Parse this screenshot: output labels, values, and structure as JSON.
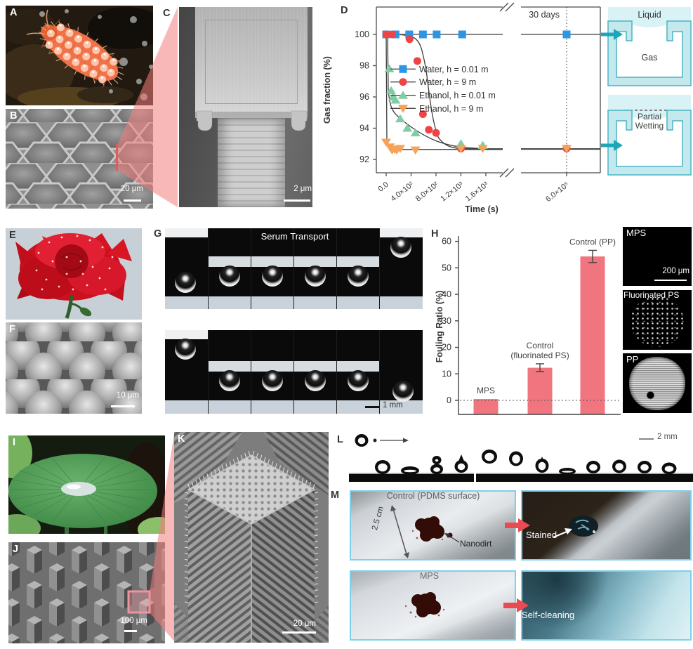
{
  "figure_labels": {
    "a": "A",
    "b": "B",
    "c": "C",
    "d": "D",
    "e": "E",
    "f": "F",
    "g": "G",
    "h": "H",
    "i": "I",
    "j": "J",
    "k": "K",
    "l": "L",
    "m": "M"
  },
  "scale_bars": {
    "b": "20 μm",
    "c": "2 μm",
    "f": "10 μm",
    "g": "1 mm",
    "h_inset": "200 μm",
    "j": "100 μm",
    "k": "20 μm",
    "l": "2 mm"
  },
  "panel_g": {
    "title": "Serum Transport"
  },
  "schematic": {
    "top_label": "Liquid",
    "top_inner_label": "Gas",
    "bottom_label": "Partial Wetting"
  },
  "h_insets": {
    "top": "MPS",
    "middle": "Fluorinated PS",
    "bottom": "PP"
  },
  "panel_m": {
    "control_label": "Control (PDMS surface)",
    "dimension": "2.5 cm",
    "nanodirt_label": "Nanodirt",
    "stained_label": "Stained",
    "mps_label": "MPS",
    "self_cleaning_label": "Self-cleaning"
  },
  "colors": {
    "water_blue": "#2D96E4",
    "water_red": "#EE4446",
    "ethanol_green": "#7FCEA3",
    "ethanol_orange": "#F6A259",
    "bar_salmon": "#F0757E",
    "teal_arrow": "#1BA7B9",
    "wedge_pink": "rgba(244,125,125,0.55)",
    "cyan_border": "#7CD0EC",
    "schematic_fill": "#C3E9EF",
    "schematic_stroke": "#4AB4C2"
  },
  "chart_data": [
    {
      "type": "line",
      "title": "",
      "xlabel": "Time (s)",
      "ylabel": "Gas fraction (%)",
      "annotation": "30 days",
      "axis_break": true,
      "axis_break_between": [
        "1.6×10³",
        "6.0×10⁵"
      ],
      "ylim": [
        91.3,
        101.6
      ],
      "yticks": [
        100,
        98,
        96,
        94,
        92
      ],
      "xticks": [
        {
          "label": "0.0",
          "t": 0
        },
        {
          "label": "4.0×10²",
          "t": 400
        },
        {
          "label": "8.0×10²",
          "t": 800
        },
        {
          "label": "1.2×10³",
          "t": 1200
        },
        {
          "label": "1.6×10³",
          "t": 1600
        },
        {
          "label": "6.0×10⁵",
          "t": 600000
        }
      ],
      "legend_position": "center",
      "series": [
        {
          "name": "Water, h = 0.01 m",
          "color": "#2D96E4",
          "marker": "square",
          "points": [
            [
              0,
              100
            ],
            [
              150,
              100
            ],
            [
              370,
              100
            ],
            [
              590,
              100
            ],
            [
              810,
              100
            ],
            [
              1220,
              100
            ],
            [
              600000,
              100
            ]
          ]
        },
        {
          "name": "Water, h = 9 m",
          "color": "#EE4446",
          "marker": "circle",
          "points": [
            [
              0,
              100
            ],
            [
              95,
              100
            ],
            [
              375,
              99.7
            ],
            [
              500,
              98.3
            ],
            [
              590,
              94.9
            ],
            [
              685,
              93.9
            ],
            [
              800,
              93.7
            ],
            [
              1200,
              92.7
            ],
            [
              600000,
              92.7
            ]
          ]
        },
        {
          "name": "Ethanol, h = 0.01 m",
          "color": "#7FCEA3",
          "marker": "triangle-up",
          "points": [
            [
              50,
              97.8
            ],
            [
              80,
              96.4
            ],
            [
              110,
              96.0
            ],
            [
              150,
              95.8
            ],
            [
              225,
              94.6
            ],
            [
              340,
              94.0
            ],
            [
              470,
              93.7
            ],
            [
              1200,
              93.0
            ],
            [
              1550,
              92.9
            ]
          ]
        },
        {
          "name": "Ethanol, h = 9 m",
          "color": "#F6A259",
          "marker": "triangle-down",
          "points": [
            [
              0,
              93.1
            ],
            [
              60,
              92.8
            ],
            [
              95,
              92.6
            ],
            [
              135,
              92.65
            ],
            [
              170,
              92.6
            ],
            [
              225,
              92.7
            ],
            [
              470,
              92.6
            ],
            [
              1200,
              92.7
            ],
            [
              1550,
              92.7
            ],
            [
              600000,
              92.7
            ]
          ]
        }
      ]
    },
    {
      "type": "bar",
      "title": "",
      "ylabel": "Fouling Ratio (%)",
      "yticks": [
        0,
        10,
        20,
        30,
        40,
        50,
        60
      ],
      "categories": [
        "MPS",
        "Control (fluorinated PS)",
        "Control (PP)"
      ],
      "categories_lines": [
        [
          "MPS"
        ],
        [
          "Control",
          "(fluorinated PS)"
        ],
        [
          "Control (PP)"
        ]
      ],
      "values": [
        0.5,
        12.3,
        54.3
      ],
      "errors": [
        0,
        1.5,
        2.3
      ],
      "bar_color": "#F0757E",
      "zero_line": "dotted",
      "baseline": -5.3
    }
  ]
}
